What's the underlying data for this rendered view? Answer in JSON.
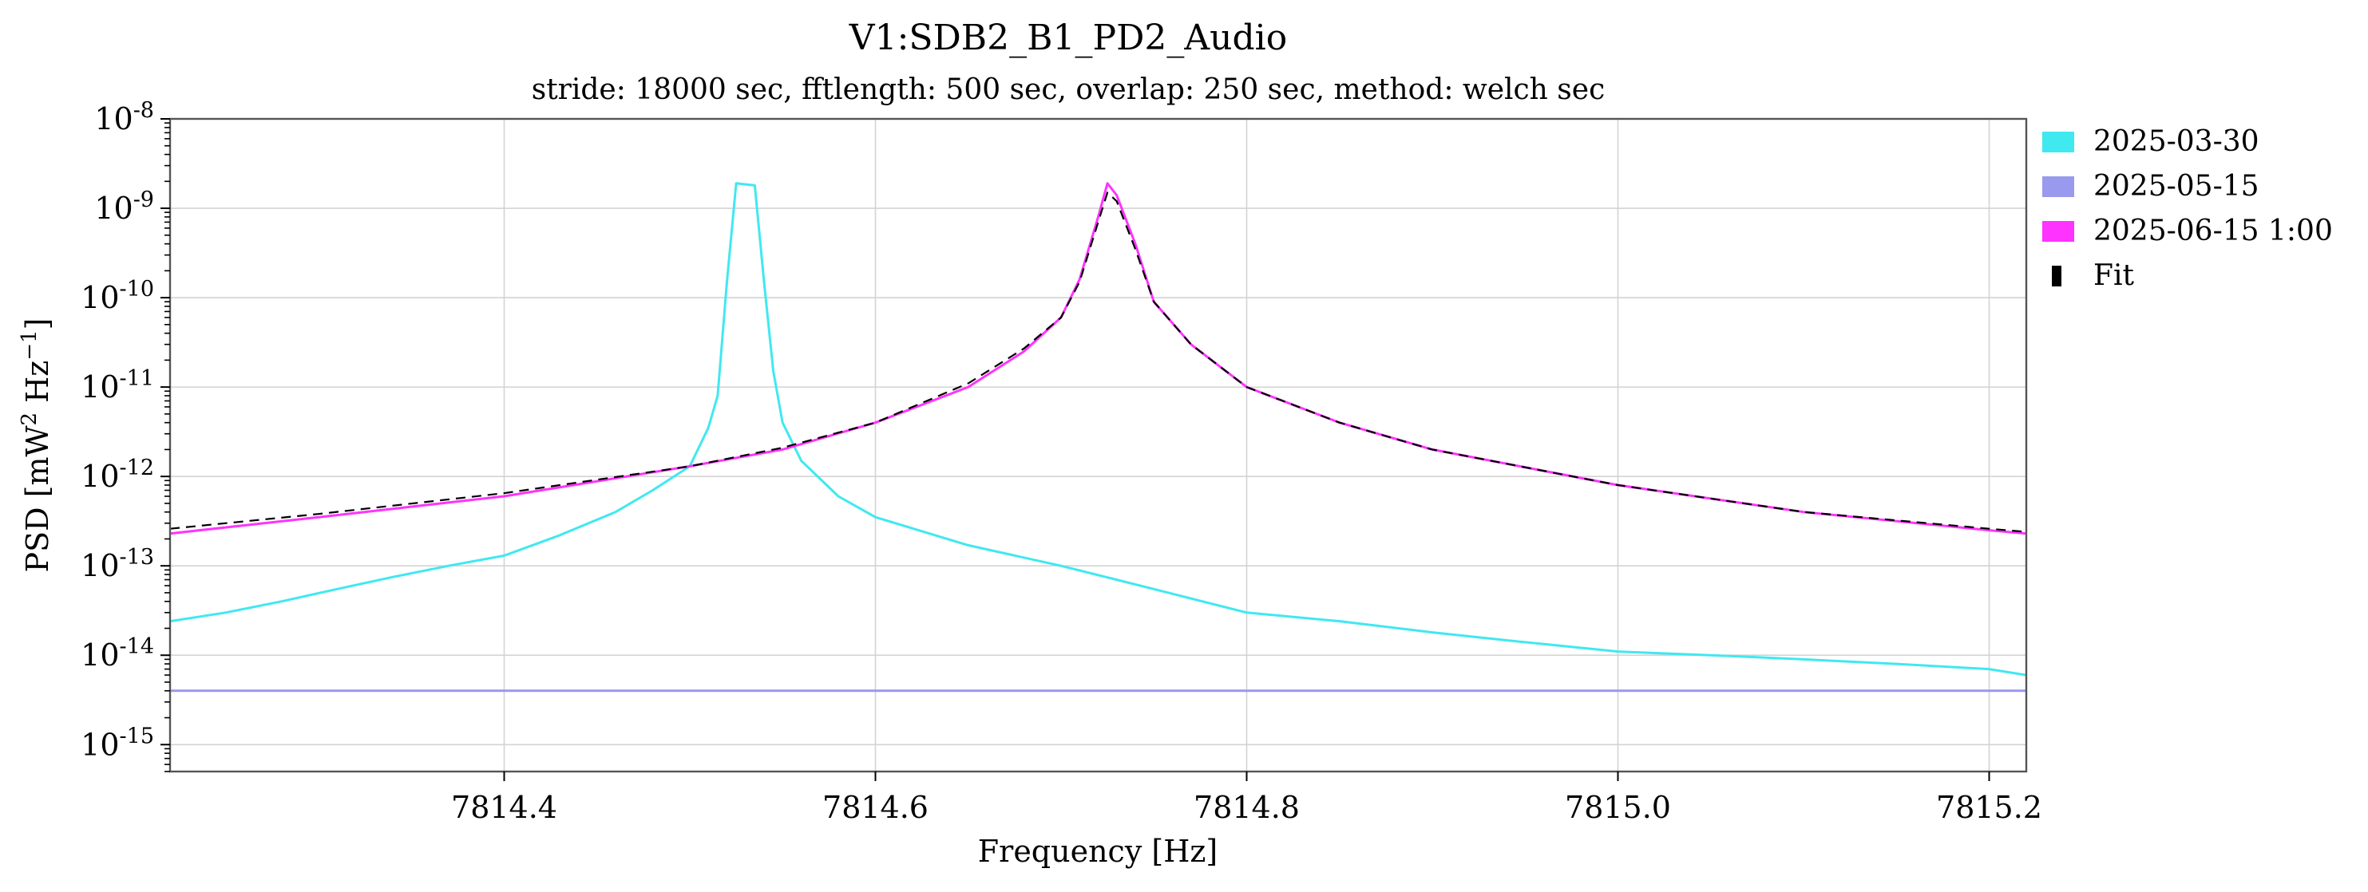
{
  "chart_data": {
    "type": "line",
    "title": "V1:SDB2_B1_PD2_Audio",
    "subtitle": "stride: 18000 sec, fftlength: 500 sec, overlap: 250 sec, method: welch sec",
    "xlabel": "Frequency [Hz]",
    "ylabel_prefix": "PSD [mW",
    "ylabel_sup1": "2",
    "ylabel_mid": " Hz",
    "ylabel_sup2": "−1",
    "ylabel_suffix": "]",
    "xlim": [
      7814.22,
      7815.22
    ],
    "ylim": [
      5e-16,
      1e-08
    ],
    "yscale": "log",
    "grid": true,
    "legend_position": "outside-right",
    "x_ticks": [
      {
        "value": 7814.4,
        "label": "7814.4"
      },
      {
        "value": 7814.6,
        "label": "7814.6"
      },
      {
        "value": 7814.8,
        "label": "7814.8"
      },
      {
        "value": 7815.0,
        "label": "7815.0"
      },
      {
        "value": 7815.2,
        "label": "7815.2"
      }
    ],
    "y_ticks": [
      {
        "exp": -8,
        "base": "10",
        "sup": "-8"
      },
      {
        "exp": -9,
        "base": "10",
        "sup": "-9"
      },
      {
        "exp": -10,
        "base": "10",
        "sup": "-10"
      },
      {
        "exp": -11,
        "base": "10",
        "sup": "-11"
      },
      {
        "exp": -12,
        "base": "10",
        "sup": "-12"
      },
      {
        "exp": -13,
        "base": "10",
        "sup": "-13"
      },
      {
        "exp": -14,
        "base": "10",
        "sup": "-14"
      },
      {
        "exp": -15,
        "base": "10",
        "sup": "-15"
      }
    ],
    "series": [
      {
        "name": "2025-03-30",
        "color": "#40e8f0",
        "style": "solid",
        "x": [
          7814.22,
          7814.25,
          7814.28,
          7814.31,
          7814.34,
          7814.37,
          7814.4,
          7814.43,
          7814.46,
          7814.48,
          7814.5,
          7814.51,
          7814.515,
          7814.52,
          7814.525,
          7814.535,
          7814.54,
          7814.545,
          7814.55,
          7814.56,
          7814.58,
          7814.6,
          7814.65,
          7814.7,
          7814.75,
          7814.8,
          7814.85,
          7814.9,
          7814.95,
          7815.0,
          7815.05,
          7815.1,
          7815.15,
          7815.2,
          7815.22
        ],
        "y": [
          2.4e-14,
          3e-14,
          4e-14,
          5.5e-14,
          7.5e-14,
          1e-13,
          1.3e-13,
          2.2e-13,
          4e-13,
          7e-13,
          1.3e-12,
          3.5e-12,
          8e-12,
          1.5e-10,
          1.9e-09,
          1.8e-09,
          1.5e-10,
          1.5e-11,
          4e-12,
          1.5e-12,
          6e-13,
          3.5e-13,
          1.7e-13,
          1e-13,
          5.5e-14,
          3e-14,
          2.4e-14,
          1.8e-14,
          1.4e-14,
          1.1e-14,
          1e-14,
          9e-15,
          8e-15,
          7e-15,
          6e-15
        ]
      },
      {
        "name": "2025-05-15",
        "color": "#9999ee",
        "style": "solid",
        "x": [
          7814.22,
          7814.3,
          7814.4,
          7814.5,
          7814.6,
          7814.7,
          7814.8,
          7814.9,
          7815.0,
          7815.1,
          7815.2,
          7815.22
        ],
        "y": [
          4e-15,
          4e-15,
          4e-15,
          4e-15,
          4e-15,
          4e-15,
          4e-15,
          4e-15,
          4e-15,
          4e-15,
          4e-15,
          4e-15
        ]
      },
      {
        "name": "2025-06-15 1:00",
        "color": "#ff33ff",
        "style": "solid",
        "x": [
          7814.22,
          7814.3,
          7814.4,
          7814.5,
          7814.55,
          7814.6,
          7814.65,
          7814.68,
          7814.7,
          7814.71,
          7814.72,
          7814.725,
          7814.73,
          7814.74,
          7814.75,
          7814.77,
          7814.8,
          7814.85,
          7814.9,
          7815.0,
          7815.1,
          7815.2,
          7815.22
        ],
        "y": [
          2.3e-13,
          3.5e-13,
          6e-13,
          1.3e-12,
          2e-12,
          4e-12,
          1e-11,
          2.5e-11,
          6e-11,
          1.6e-10,
          8e-10,
          1.9e-09,
          1.4e-09,
          4e-10,
          9e-11,
          3e-11,
          1e-11,
          4e-12,
          2e-12,
          8e-13,
          4e-13,
          2.5e-13,
          2.3e-13
        ]
      },
      {
        "name": "Fit",
        "color": "#000000",
        "style": "dashed",
        "x": [
          7814.22,
          7814.3,
          7814.4,
          7814.5,
          7814.55,
          7814.6,
          7814.65,
          7814.68,
          7814.7,
          7814.71,
          7814.72,
          7814.725,
          7814.73,
          7814.74,
          7814.75,
          7814.77,
          7814.8,
          7814.85,
          7814.9,
          7815.0,
          7815.1,
          7815.2,
          7815.22
        ],
        "y": [
          2.6e-13,
          3.8e-13,
          6.5e-13,
          1.3e-12,
          2.1e-12,
          4e-12,
          1.1e-11,
          2.7e-11,
          6e-11,
          1.5e-10,
          7e-10,
          1.5e-09,
          1.2e-09,
          3.5e-10,
          9e-11,
          3e-11,
          1e-11,
          4e-12,
          2e-12,
          8e-13,
          4e-13,
          2.6e-13,
          2.4e-13
        ]
      }
    ]
  }
}
